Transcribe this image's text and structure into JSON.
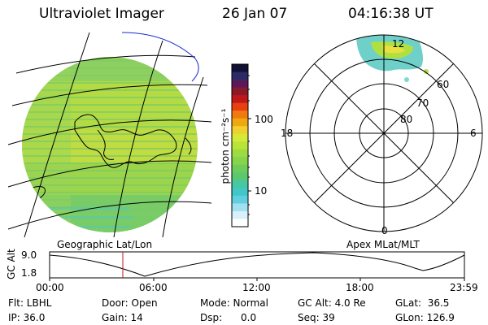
{
  "header": {
    "title": "Ultraviolet Imager",
    "date": "26 Jan 07",
    "time": "04:16:38 UT"
  },
  "colorbar": {
    "label": "photon cm⁻²s⁻¹",
    "ticks": [
      "100",
      "10"
    ],
    "colors": [
      "#111133",
      "#2a2a66",
      "#5a1a5a",
      "#8a1a2a",
      "#c01818",
      "#e84010",
      "#f07a10",
      "#f0a810",
      "#f0d030",
      "#d8e838",
      "#b8e438",
      "#9cdc40",
      "#86d44a",
      "#70cc58",
      "#5ac870",
      "#48c8a0",
      "#40c8c8",
      "#60d0e0",
      "#a0e0f0",
      "#d8f0f8",
      "#ffffff"
    ]
  },
  "panel_labels": {
    "left": "Geographic Lat/Lon",
    "right": "Apex MLat/MLT"
  },
  "polar": {
    "ring_labels": [
      "60",
      "70",
      "80"
    ],
    "mlt_labels": {
      "top": "12",
      "left": "18",
      "right": "6",
      "bottom": "0"
    }
  },
  "timeline": {
    "axis_label": "GC Alt",
    "y_ticks": [
      "9.0",
      "1.8"
    ],
    "x_ticks": [
      "00:00",
      "06:00",
      "12:00",
      "18:00",
      "23:59"
    ],
    "marker_time": "04:16:38"
  },
  "footer": {
    "flt": "Flt: LBHL",
    "door": "Door: Open",
    "mode": "Mode: Normal",
    "gcalt": "GC Alt: 4.0 Re",
    "glat": "GLat:  36.5",
    "ip": "IP: 36.0",
    "gain": "Gain: 14",
    "dsp": "Dsp:      0.0",
    "seq": "Seq: 39",
    "glon": "GLon: 126.9"
  }
}
